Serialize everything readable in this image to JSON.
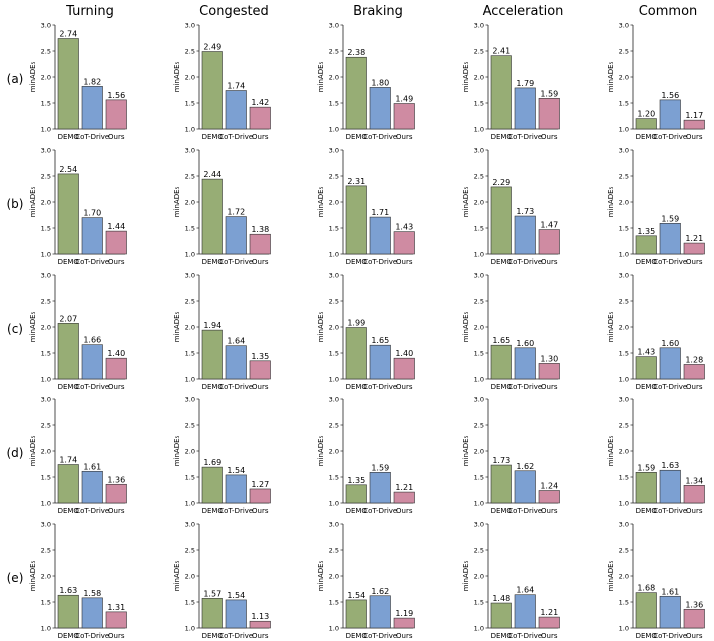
{
  "chart_data": {
    "type": "bar",
    "layout": "grid",
    "column_titles": [
      "Turning",
      "Congested",
      "Braking",
      "Acceleration",
      "Common"
    ],
    "row_labels": [
      "(a)",
      "(b)",
      "(c)",
      "(d)",
      "(e)"
    ],
    "categories": [
      "DEMO",
      "CoT-Drive",
      "Ours"
    ],
    "ylabel": "minADE₅",
    "ylim": [
      1.0,
      3.0
    ],
    "yticks": [
      "1.0",
      "1.5",
      "2.0",
      "2.5",
      "3.0"
    ],
    "colors": [
      "#97ad75",
      "#7ca0d2",
      "#cf8ba2"
    ],
    "edge_color": "#333333",
    "rows": [
      {
        "label": "(a)",
        "panels": [
          {
            "title": "Turning",
            "values": [
              2.74,
              1.82,
              1.56
            ],
            "labels": [
              "2.74",
              "1.82",
              "1.56"
            ]
          },
          {
            "title": "Congested",
            "values": [
              2.49,
              1.74,
              1.42
            ],
            "labels": [
              "2.49",
              "1.74",
              "1.42"
            ]
          },
          {
            "title": "Braking",
            "values": [
              2.38,
              1.8,
              1.49
            ],
            "labels": [
              "2.38",
              "1.80",
              "1.49"
            ]
          },
          {
            "title": "Acceleration",
            "values": [
              2.41,
              1.79,
              1.59
            ],
            "labels": [
              "2.41",
              "1.79",
              "1.59"
            ]
          },
          {
            "title": "Common",
            "values": [
              1.2,
              1.56,
              1.17
            ],
            "labels": [
              "1.20",
              "1.56",
              "1.17"
            ]
          }
        ]
      },
      {
        "label": "(b)",
        "panels": [
          {
            "title": "Turning",
            "values": [
              2.54,
              1.7,
              1.44
            ],
            "labels": [
              "2.54",
              "1.70",
              "1.44"
            ]
          },
          {
            "title": "Congested",
            "values": [
              2.44,
              1.72,
              1.38
            ],
            "labels": [
              "2.44",
              "1.72",
              "1.38"
            ]
          },
          {
            "title": "Braking",
            "values": [
              2.31,
              1.71,
              1.43
            ],
            "labels": [
              "2.31",
              "1.71",
              "1.43"
            ]
          },
          {
            "title": "Acceleration",
            "values": [
              2.29,
              1.73,
              1.47
            ],
            "labels": [
              "2.29",
              "1.73",
              "1.47"
            ]
          },
          {
            "title": "Common",
            "values": [
              1.35,
              1.59,
              1.21
            ],
            "labels": [
              "1.35",
              "1.59",
              "1.21"
            ]
          }
        ]
      },
      {
        "label": "(c)",
        "panels": [
          {
            "title": "Turning",
            "values": [
              2.07,
              1.66,
              1.4
            ],
            "labels": [
              "2.07",
              "1.66",
              "1.40"
            ]
          },
          {
            "title": "Congested",
            "values": [
              1.94,
              1.64,
              1.35
            ],
            "labels": [
              "1.94",
              "1.64",
              "1.35"
            ]
          },
          {
            "title": "Braking",
            "values": [
              1.99,
              1.65,
              1.4
            ],
            "labels": [
              "1.99",
              "1.65",
              "1.40"
            ]
          },
          {
            "title": "Acceleration",
            "values": [
              1.65,
              1.6,
              1.3
            ],
            "labels": [
              "1.65",
              "1.60",
              "1.30"
            ]
          },
          {
            "title": "Common",
            "values": [
              1.43,
              1.6,
              1.28
            ],
            "labels": [
              "1.43",
              "1.60",
              "1.28"
            ]
          }
        ]
      },
      {
        "label": "(d)",
        "panels": [
          {
            "title": "Turning",
            "values": [
              1.74,
              1.61,
              1.36
            ],
            "labels": [
              "1.74",
              "1.61",
              "1.36"
            ]
          },
          {
            "title": "Congested",
            "values": [
              1.69,
              1.54,
              1.27
            ],
            "labels": [
              "1.69",
              "1.54",
              "1.27"
            ]
          },
          {
            "title": "Braking",
            "values": [
              1.35,
              1.59,
              1.21
            ],
            "labels": [
              "1.35",
              "1.59",
              "1.21"
            ]
          },
          {
            "title": "Acceleration",
            "values": [
              1.73,
              1.62,
              1.24
            ],
            "labels": [
              "1.73",
              "1.62",
              "1.24"
            ]
          },
          {
            "title": "Common",
            "values": [
              1.59,
              1.63,
              1.34
            ],
            "labels": [
              "1.59",
              "1.63",
              "1.34"
            ]
          }
        ]
      },
      {
        "label": "(e)",
        "panels": [
          {
            "title": "Turning",
            "values": [
              1.63,
              1.58,
              1.31
            ],
            "labels": [
              "1.63",
              "1.58",
              "1.31"
            ]
          },
          {
            "title": "Congested",
            "values": [
              1.57,
              1.54,
              1.13
            ],
            "labels": [
              "1.57",
              "1.54",
              "1.13"
            ]
          },
          {
            "title": "Braking",
            "values": [
              1.54,
              1.62,
              1.19
            ],
            "labels": [
              "1.54",
              "1.62",
              "1.19"
            ]
          },
          {
            "title": "Acceleration",
            "values": [
              1.48,
              1.64,
              1.21
            ],
            "labels": [
              "1.48",
              "1.64",
              "1.21"
            ]
          },
          {
            "title": "Common",
            "values": [
              1.68,
              1.61,
              1.36
            ],
            "labels": [
              "1.68",
              "1.61",
              "1.36"
            ]
          }
        ]
      }
    ]
  }
}
